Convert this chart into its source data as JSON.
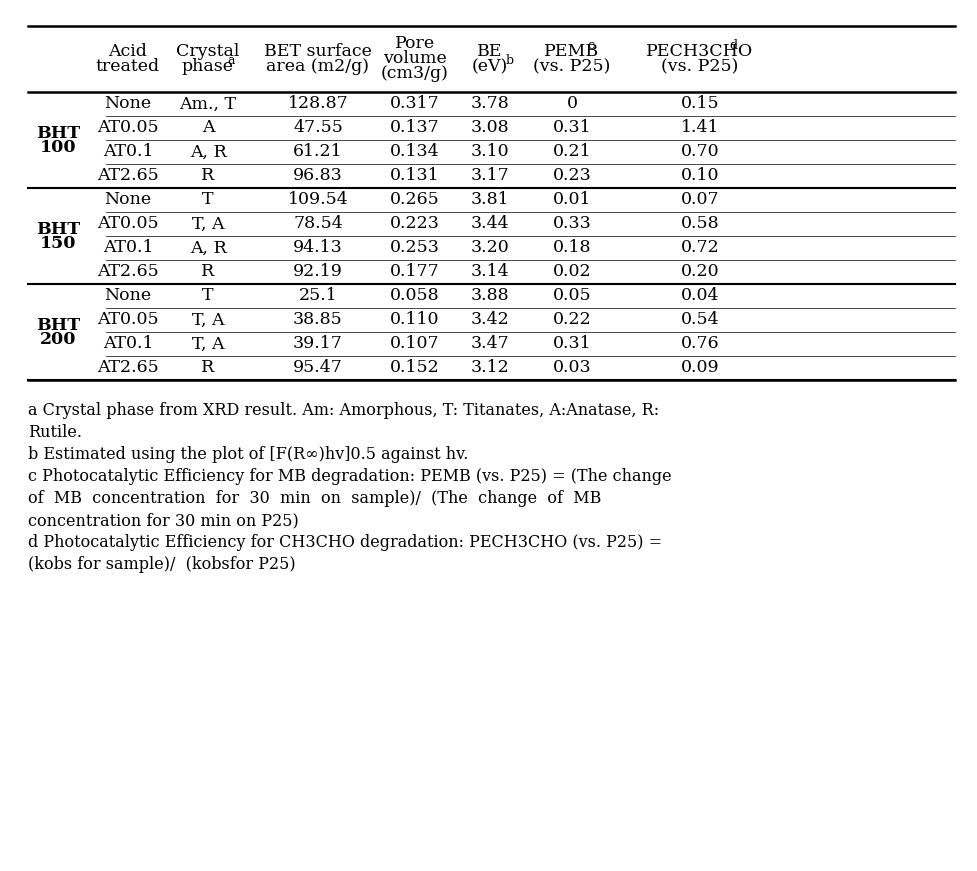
{
  "groups": [
    {
      "label_line1": "BHT",
      "label_line2": "100",
      "rows": [
        [
          "None",
          "Am., T",
          "128.87",
          "0.317",
          "3.78",
          "0",
          "0.15"
        ],
        [
          "AT0.05",
          "A",
          "47.55",
          "0.137",
          "3.08",
          "0.31",
          "1.41"
        ],
        [
          "AT0.1",
          "A, R",
          "61.21",
          "0.134",
          "3.10",
          "0.21",
          "0.70"
        ],
        [
          "AT2.65",
          "R",
          "96.83",
          "0.131",
          "3.17",
          "0.23",
          "0.10"
        ]
      ]
    },
    {
      "label_line1": "BHT",
      "label_line2": "150",
      "rows": [
        [
          "None",
          "T",
          "109.54",
          "0.265",
          "3.81",
          "0.01",
          "0.07"
        ],
        [
          "AT0.05",
          "T, A",
          "78.54",
          "0.223",
          "3.44",
          "0.33",
          "0.58"
        ],
        [
          "AT0.1",
          "A, R",
          "94.13",
          "0.253",
          "3.20",
          "0.18",
          "0.72"
        ],
        [
          "AT2.65",
          "R",
          "92.19",
          "0.177",
          "3.14",
          "0.02",
          "0.20"
        ]
      ]
    },
    {
      "label_line1": "BHT",
      "label_line2": "200",
      "rows": [
        [
          "None",
          "T",
          "25.1",
          "0.058",
          "3.88",
          "0.05",
          "0.04"
        ],
        [
          "AT0.05",
          "T, A",
          "38.85",
          "0.110",
          "3.42",
          "0.22",
          "0.54"
        ],
        [
          "AT0.1",
          "T, A",
          "39.17",
          "0.107",
          "3.47",
          "0.31",
          "0.76"
        ],
        [
          "AT2.65",
          "R",
          "95.47",
          "0.152",
          "3.12",
          "0.03",
          "0.09"
        ]
      ]
    }
  ],
  "footnotes": [
    [
      "a",
      " Crystal phase from XRD result. Am: Amorphous, T: Titanates, A:Anatase, R:"
    ],
    [
      "",
      "Rutile."
    ],
    [
      "b",
      " Estimated using the plot of [F(R∞)hv]0.5 against hv."
    ],
    [
      "c",
      " Photocatalytic Efficiency for MB degradation: PEMB (vs. P25) = (The change"
    ],
    [
      "",
      "of  MB  concentration  for  30  min  on  sample)/  (The  change  of  MB"
    ],
    [
      "",
      "concentration for 30 min on P25)"
    ],
    [
      "d",
      " Photocatalytic Efficiency for CH3CHO degradation: PECH3CHO (vs. P25) ="
    ],
    [
      "",
      "(kobs for sample)/  (kobsfor P25)"
    ]
  ],
  "font_size": 12.5,
  "footnote_font_size": 11.5,
  "background_color": "#ffffff",
  "text_color": "#000000"
}
